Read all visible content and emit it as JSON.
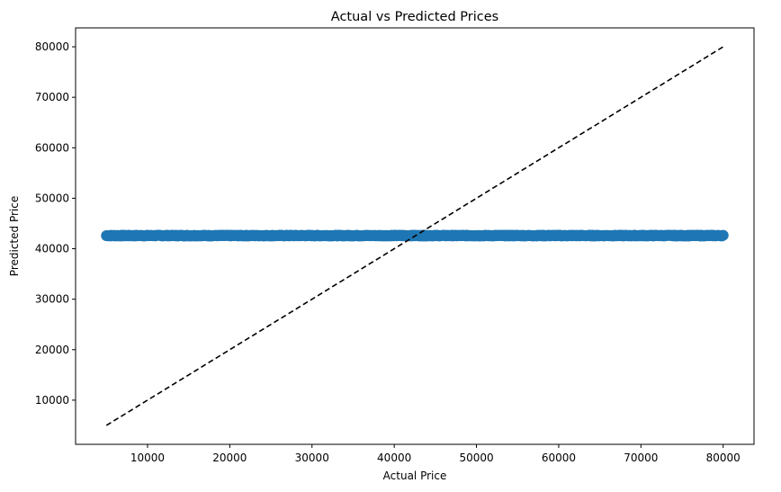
{
  "chart_data": {
    "type": "scatter",
    "title": "Actual vs Predicted Prices",
    "xlabel": "Actual Price",
    "ylabel": "Predicted Price",
    "xlim": [
      1250,
      83750
    ],
    "ylim": [
      1250,
      83750
    ],
    "xticks": [
      10000,
      20000,
      30000,
      40000,
      50000,
      60000,
      70000,
      80000
    ],
    "yticks": [
      10000,
      20000,
      30000,
      40000,
      50000,
      60000,
      70000,
      80000
    ],
    "grid": false,
    "legend": "none",
    "series": [
      {
        "marker_color": "#1f77b4",
        "x_range": [
          5000,
          80000
        ],
        "y_value": 42600,
        "point_count": 900
      }
    ],
    "reference_line": {
      "style": "dashed",
      "color": "#000000",
      "x": [
        5000,
        80000
      ],
      "y": [
        5000,
        80000
      ]
    }
  }
}
